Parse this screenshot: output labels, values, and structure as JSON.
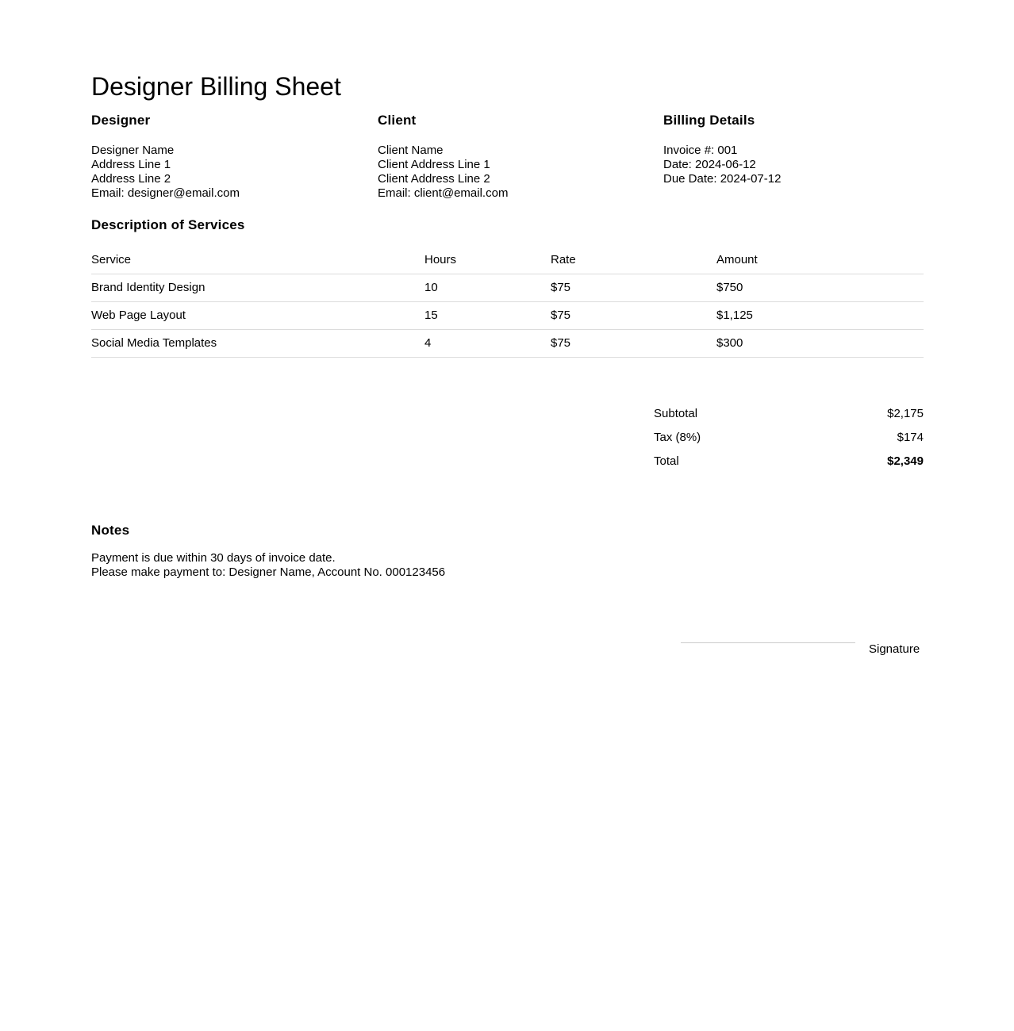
{
  "title": "Designer Billing Sheet",
  "designer": {
    "heading": "Designer",
    "lines": [
      "Designer Name",
      "Address Line 1",
      "Address Line 2",
      "Email: designer@email.com"
    ]
  },
  "client": {
    "heading": "Client",
    "lines": [
      "Client Name",
      "Client Address Line 1",
      "Client Address Line 2",
      "Email: client@email.com"
    ]
  },
  "billing": {
    "heading": "Billing Details",
    "lines": [
      "Invoice #: 001",
      "Date: 2024-06-12",
      "Due Date: 2024-07-12"
    ]
  },
  "services": {
    "heading": "Description of Services",
    "columns": [
      "Service",
      "Hours",
      "Rate",
      "Amount"
    ],
    "rows": [
      {
        "service": "Brand Identity Design",
        "hours": "10",
        "rate": "$75",
        "amount": "$750"
      },
      {
        "service": "Web Page Layout",
        "hours": "15",
        "rate": "$75",
        "amount": "$1,125"
      },
      {
        "service": "Social Media Templates",
        "hours": "4",
        "rate": "$75",
        "amount": "$300"
      }
    ]
  },
  "totals": {
    "subtotal_label": "Subtotal",
    "subtotal_value": "$2,175",
    "tax_label": "Tax (8%)",
    "tax_value": "$174",
    "total_label": "Total",
    "total_value": "$2,349"
  },
  "notes": {
    "heading": "Notes",
    "lines": [
      "Payment is due within 30 days of invoice date.",
      "Please make payment to: Designer Name, Account No. 000123456"
    ]
  },
  "signature": {
    "label": "Signature"
  },
  "colors": {
    "text": "#000000",
    "separator_line": "#dcdcdc",
    "signature_line": "#cccccc",
    "background": "#ffffff"
  }
}
